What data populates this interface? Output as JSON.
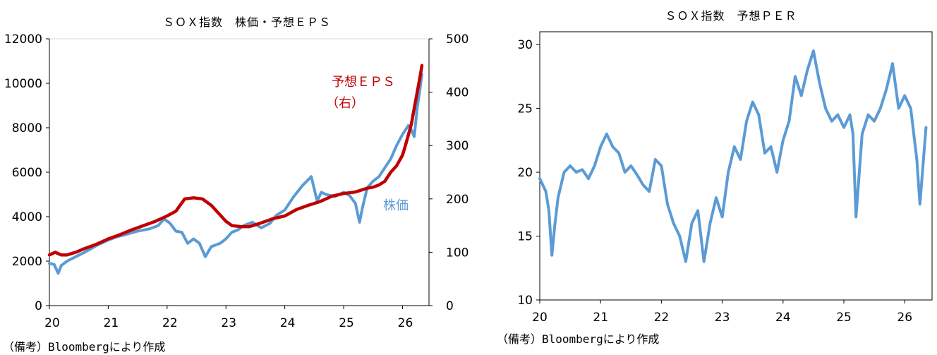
{
  "chart_data": [
    {
      "type": "line",
      "title": "ＳＯＸ指数　株価・予想ＥＰＳ",
      "x_ticks": [
        "20",
        "21",
        "22",
        "23",
        "24",
        "25",
        "26"
      ],
      "xlim": [
        20,
        26.45
      ],
      "y_left_ticks": [
        "0",
        "2000",
        "4000",
        "6000",
        "8000",
        "10000",
        "12000"
      ],
      "y_left_lim": [
        0,
        12000
      ],
      "y_right_ticks": [
        "0",
        "100",
        "200",
        "300",
        "400",
        "500"
      ],
      "y_right_lim": [
        0,
        500
      ],
      "annotations": {
        "eps_label": "予想ＥＰＳ",
        "eps_sub": "（右）",
        "price_label": "株価"
      },
      "source_note": "（備考）Bloombergにより作成",
      "series": [
        {
          "name": "株価",
          "axis": "left",
          "color": "#5B9BD5",
          "x": [
            20.0,
            20.08,
            20.15,
            20.2,
            20.3,
            20.45,
            20.6,
            20.8,
            21.0,
            21.15,
            21.3,
            21.5,
            21.7,
            21.85,
            21.95,
            22.05,
            22.15,
            22.25,
            22.35,
            22.45,
            22.55,
            22.65,
            22.75,
            22.8,
            22.9,
            23.0,
            23.1,
            23.2,
            23.3,
            23.45,
            23.6,
            23.75,
            23.85,
            24.0,
            24.15,
            24.3,
            24.45,
            24.55,
            24.62,
            24.7,
            24.85,
            25.0,
            25.1,
            25.2,
            25.27,
            25.32,
            25.4,
            25.5,
            25.6,
            25.7,
            25.8,
            25.9,
            26.0,
            26.1,
            26.15,
            26.2,
            26.25,
            26.3,
            26.33
          ],
          "values": [
            1900,
            1850,
            1450,
            1800,
            2000,
            2200,
            2400,
            2700,
            2950,
            3100,
            3200,
            3350,
            3450,
            3600,
            3900,
            3700,
            3350,
            3300,
            2800,
            3000,
            2800,
            2200,
            2650,
            2700,
            2800,
            3000,
            3300,
            3400,
            3600,
            3750,
            3500,
            3700,
            4050,
            4300,
            4900,
            5400,
            5800,
            4700,
            5100,
            5000,
            4900,
            5100,
            4950,
            4600,
            3750,
            4400,
            5300,
            5600,
            5800,
            6200,
            6600,
            7200,
            7700,
            8100,
            7900,
            7600,
            8900,
            9800,
            10400
          ]
        },
        {
          "name": "予想ＥＰＳ",
          "axis": "right",
          "color": "#C00000",
          "x": [
            20.0,
            20.1,
            20.2,
            20.3,
            20.45,
            20.6,
            20.8,
            21.0,
            21.2,
            21.4,
            21.6,
            21.8,
            22.0,
            22.15,
            22.3,
            22.45,
            22.6,
            22.75,
            22.9,
            23.0,
            23.1,
            23.25,
            23.4,
            23.6,
            23.8,
            24.0,
            24.2,
            24.4,
            24.6,
            24.8,
            25.0,
            25.2,
            25.4,
            25.5,
            25.6,
            25.7,
            25.8,
            25.9,
            26.0,
            26.05,
            26.1,
            26.15,
            26.2,
            26.25,
            26.3,
            26.33
          ],
          "values": [
            95,
            100,
            95,
            95,
            100,
            107,
            115,
            125,
            133,
            142,
            150,
            158,
            168,
            177,
            200,
            202,
            200,
            188,
            170,
            158,
            150,
            148,
            148,
            155,
            163,
            168,
            180,
            188,
            195,
            205,
            210,
            213,
            220,
            222,
            226,
            233,
            250,
            262,
            282,
            300,
            320,
            340,
            370,
            400,
            430,
            450
          ]
        }
      ]
    },
    {
      "type": "line",
      "title": "ＳＯＸ指数　予想ＰＥＲ",
      "x_ticks": [
        "20",
        "21",
        "22",
        "23",
        "24",
        "25",
        "26"
      ],
      "xlim": [
        20,
        26.45
      ],
      "y_ticks": [
        "10",
        "15",
        "20",
        "25",
        "30"
      ],
      "ylim": [
        10,
        31
      ],
      "source_note": "（備考）Bloombergにより作成",
      "series": [
        {
          "name": "予想ＰＥＲ",
          "color": "#5B9BD5",
          "x": [
            20.0,
            20.05,
            20.1,
            20.15,
            20.2,
            20.25,
            20.3,
            20.4,
            20.5,
            20.6,
            20.7,
            20.8,
            20.9,
            21.0,
            21.1,
            21.2,
            21.3,
            21.4,
            21.5,
            21.6,
            21.7,
            21.8,
            21.9,
            22.0,
            22.1,
            22.2,
            22.3,
            22.4,
            22.5,
            22.6,
            22.7,
            22.8,
            22.9,
            23.0,
            23.1,
            23.2,
            23.3,
            23.4,
            23.5,
            23.6,
            23.7,
            23.8,
            23.9,
            24.0,
            24.1,
            24.2,
            24.3,
            24.4,
            24.5,
            24.6,
            24.7,
            24.8,
            24.9,
            25.0,
            25.1,
            25.15,
            25.2,
            25.3,
            25.4,
            25.5,
            25.6,
            25.7,
            25.8,
            25.9,
            26.0,
            26.1,
            26.2,
            26.25,
            26.3,
            26.35
          ],
          "values": [
            19.5,
            19.0,
            18.5,
            17.0,
            13.5,
            16.0,
            18.0,
            20.0,
            20.5,
            20.0,
            20.2,
            19.5,
            20.5,
            22.0,
            23.0,
            22.0,
            21.5,
            20.0,
            20.5,
            19.8,
            19.0,
            18.5,
            21.0,
            20.5,
            17.5,
            16.0,
            15.0,
            13.0,
            16.0,
            17.0,
            13.0,
            16.0,
            18.0,
            16.5,
            20.0,
            22.0,
            21.0,
            24.0,
            25.5,
            24.5,
            21.5,
            22.0,
            20.0,
            22.5,
            24.0,
            27.5,
            26.0,
            28.0,
            29.5,
            27.0,
            25.0,
            24.0,
            24.5,
            23.5,
            24.5,
            23.0,
            16.5,
            23.0,
            24.5,
            24.0,
            25.0,
            26.5,
            28.5,
            25.0,
            26.0,
            25.0,
            21.0,
            17.5,
            20.5,
            23.5
          ]
        }
      ]
    }
  ]
}
